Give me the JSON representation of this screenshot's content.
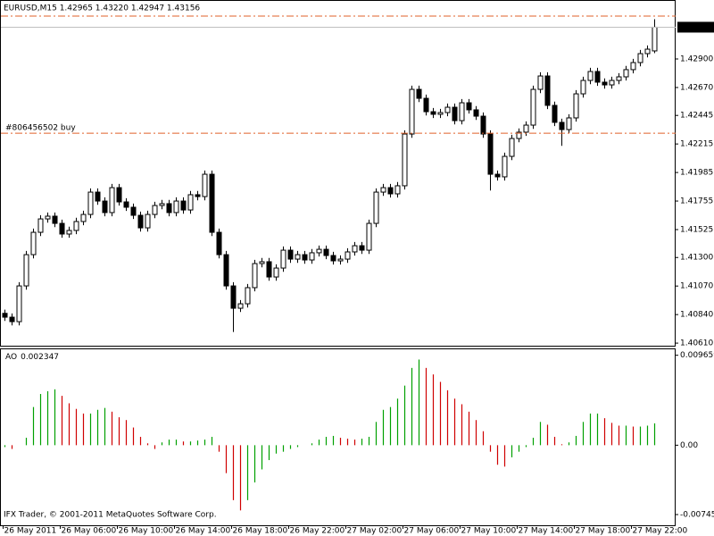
{
  "chart_data": [
    {
      "type": "candlestick",
      "title": "EURUSD,M15  1.42965 1.43220 1.42947 1.43156",
      "ylim": [
        1.40589,
        1.43368
      ],
      "yticks": [
        {
          "value": 1.429,
          "label": "1.42900"
        },
        {
          "value": 1.4267,
          "label": "1.42670"
        },
        1.42445,
        1.42215,
        1.41985,
        1.41755,
        1.41525,
        {
          "value": 1.413,
          "label": "1.41300"
        },
        {
          "value": 1.4107,
          "label": "1.41070"
        },
        {
          "value": 1.4084,
          "label": "1.40840"
        },
        {
          "value": 1.4061,
          "label": "1.40610"
        }
      ],
      "xlim": [
        -0.5,
        94
      ],
      "xticks": [
        {
          "value": 0,
          "label": "26 May 2011"
        },
        {
          "value": 8,
          "label": "26 May 06:00"
        },
        {
          "value": 16,
          "label": "26 May 10:00"
        },
        {
          "value": 24,
          "label": "26 May 14:00"
        },
        {
          "value": 32,
          "label": "26 May 18:00"
        },
        {
          "value": 40,
          "label": "26 May 22:00"
        },
        {
          "value": 48,
          "label": "27 May 02:00"
        },
        {
          "value": 56,
          "label": "27 May 06:00"
        },
        {
          "value": 64,
          "label": "27 May 10:00"
        },
        {
          "value": 72,
          "label": "27 May 14:00"
        },
        {
          "value": 80,
          "label": "27 May 18:00"
        },
        {
          "value": 88,
          "label": "27 May 22:00"
        }
      ],
      "grid": false,
      "bull_color": "#ffffff",
      "bear_color": "#000000",
      "wick_color": "#000000",
      "levels": [
        {
          "value": 1.43246
        },
        {
          "value": 1.42302,
          "label": "#806456502 buy"
        }
      ],
      "level_color": "#e0602a",
      "bid": {
        "value": 1.43156,
        "label": "1.43156"
      },
      "bid_color": "#c0c0c0",
      "ohlc": [
        [
          1.4085,
          1.4088,
          1.40789,
          1.40819
        ],
        [
          1.40819,
          1.40849,
          1.40753,
          1.40783
        ],
        [
          1.40783,
          1.41101,
          1.40753,
          1.41071
        ],
        [
          1.41071,
          1.41353,
          1.41041,
          1.41323
        ],
        [
          1.41323,
          1.41533,
          1.41293,
          1.41503
        ],
        [
          1.41503,
          1.41641,
          1.41473,
          1.41611
        ],
        [
          1.41611,
          1.41663,
          1.41581,
          1.41633
        ],
        [
          1.41633,
          1.41663,
          1.41545,
          1.41575
        ],
        [
          1.41575,
          1.41605,
          1.41459,
          1.41489
        ],
        [
          1.41489,
          1.41548,
          1.41459,
          1.41518
        ],
        [
          1.41518,
          1.4162,
          1.41488,
          1.4159
        ],
        [
          1.4159,
          1.41677,
          1.4156,
          1.41647
        ],
        [
          1.41647,
          1.41857,
          1.41617,
          1.41827
        ],
        [
          1.41827,
          1.41857,
          1.41725,
          1.41755
        ],
        [
          1.41755,
          1.41785,
          1.41632,
          1.41662
        ],
        [
          1.41662,
          1.41893,
          1.41632,
          1.41863
        ],
        [
          1.41863,
          1.41893,
          1.41718,
          1.41748
        ],
        [
          1.41748,
          1.41778,
          1.41675,
          1.41705
        ],
        [
          1.41705,
          1.41735,
          1.4161,
          1.4164
        ],
        [
          1.4164,
          1.4167,
          1.41509,
          1.41539
        ],
        [
          1.41539,
          1.41677,
          1.41509,
          1.41647
        ],
        [
          1.41647,
          1.41749,
          1.41617,
          1.41719
        ],
        [
          1.41719,
          1.41764,
          1.41689,
          1.41734
        ],
        [
          1.41734,
          1.41764,
          1.41632,
          1.41662
        ],
        [
          1.41662,
          1.41785,
          1.41632,
          1.41755
        ],
        [
          1.41755,
          1.41785,
          1.41653,
          1.41683
        ],
        [
          1.41683,
          1.41836,
          1.41653,
          1.41806
        ],
        [
          1.41806,
          1.41836,
          1.41761,
          1.41791
        ],
        [
          1.41791,
          1.42001,
          1.41761,
          1.41971
        ],
        [
          1.41971,
          1.42001,
          1.41473,
          1.41503
        ],
        [
          1.41503,
          1.41533,
          1.41293,
          1.41323
        ],
        [
          1.41323,
          1.41353,
          1.41041,
          1.41071
        ],
        [
          1.41071,
          1.41101,
          1.407,
          1.40891
        ],
        [
          1.40891,
          1.40957,
          1.40861,
          1.40927
        ],
        [
          1.40927,
          1.41087,
          1.40897,
          1.41057
        ],
        [
          1.41057,
          1.41281,
          1.41027,
          1.41251
        ],
        [
          1.41251,
          1.41296,
          1.41221,
          1.41266
        ],
        [
          1.41266,
          1.41296,
          1.41113,
          1.41143
        ],
        [
          1.41143,
          1.41245,
          1.41113,
          1.41215
        ],
        [
          1.41215,
          1.41389,
          1.41185,
          1.41359
        ],
        [
          1.41359,
          1.41389,
          1.41257,
          1.41287
        ],
        [
          1.41287,
          1.41353,
          1.41257,
          1.41323
        ],
        [
          1.41323,
          1.41353,
          1.4125,
          1.4128
        ],
        [
          1.4128,
          1.41368,
          1.4125,
          1.41338
        ],
        [
          1.41338,
          1.41396,
          1.41308,
          1.41366
        ],
        [
          1.41366,
          1.41396,
          1.41286,
          1.41316
        ],
        [
          1.41316,
          1.41346,
          1.41243,
          1.41273
        ],
        [
          1.41273,
          1.41317,
          1.41243,
          1.41287
        ],
        [
          1.41287,
          1.41375,
          1.41257,
          1.41345
        ],
        [
          1.41345,
          1.41425,
          1.41315,
          1.41395
        ],
        [
          1.41395,
          1.41425,
          1.41329,
          1.41359
        ],
        [
          1.41359,
          1.41605,
          1.41329,
          1.41575
        ],
        [
          1.41575,
          1.41857,
          1.41545,
          1.41827
        ],
        [
          1.41827,
          1.41893,
          1.41797,
          1.41863
        ],
        [
          1.41863,
          1.41893,
          1.41783,
          1.41813
        ],
        [
          1.41813,
          1.41908,
          1.41783,
          1.41878
        ],
        [
          1.41878,
          1.42325,
          1.41848,
          1.42295
        ],
        [
          1.42295,
          1.42685,
          1.42265,
          1.42655
        ],
        [
          1.42655,
          1.42685,
          1.42553,
          1.42583
        ],
        [
          1.42583,
          1.42613,
          1.42445,
          1.42475
        ],
        [
          1.42475,
          1.42505,
          1.42424,
          1.42454
        ],
        [
          1.42454,
          1.42498,
          1.42424,
          1.42468
        ],
        [
          1.42468,
          1.42541,
          1.42438,
          1.42511
        ],
        [
          1.42511,
          1.42541,
          1.42373,
          1.42403
        ],
        [
          1.42403,
          1.42577,
          1.42373,
          1.42547
        ],
        [
          1.42547,
          1.42577,
          1.4246,
          1.4249
        ],
        [
          1.4249,
          1.4252,
          1.42409,
          1.42439
        ],
        [
          1.42439,
          1.42469,
          1.42265,
          1.42295
        ],
        [
          1.42295,
          1.42325,
          1.4184,
          1.41971
        ],
        [
          1.41971,
          1.42001,
          1.4192,
          1.4195
        ],
        [
          1.4195,
          1.42145,
          1.4192,
          1.42115
        ],
        [
          1.42115,
          1.42289,
          1.42085,
          1.42259
        ],
        [
          1.42259,
          1.4234,
          1.42229,
          1.4231
        ],
        [
          1.4231,
          1.42397,
          1.4228,
          1.42367
        ],
        [
          1.42367,
          1.42685,
          1.42337,
          1.42655
        ],
        [
          1.42655,
          1.42793,
          1.42625,
          1.42763
        ],
        [
          1.42763,
          1.42793,
          1.42496,
          1.42526
        ],
        [
          1.42526,
          1.42556,
          1.42359,
          1.42389
        ],
        [
          1.42389,
          1.42419,
          1.422,
          1.42331
        ],
        [
          1.42331,
          1.42455,
          1.42301,
          1.42425
        ],
        [
          1.42425,
          1.42649,
          1.42395,
          1.42619
        ],
        [
          1.42619,
          1.42757,
          1.42589,
          1.42727
        ],
        [
          1.42727,
          1.42829,
          1.42697,
          1.42799
        ],
        [
          1.42799,
          1.42829,
          1.42683,
          1.42713
        ],
        [
          1.42713,
          1.42743,
          1.42661,
          1.42691
        ],
        [
          1.42691,
          1.42757,
          1.42661,
          1.42727
        ],
        [
          1.42727,
          1.42786,
          1.42697,
          1.42756
        ],
        [
          1.42756,
          1.42844,
          1.42726,
          1.42814
        ],
        [
          1.42814,
          1.42901,
          1.42784,
          1.42871
        ],
        [
          1.42871,
          1.42973,
          1.42841,
          1.42943
        ],
        [
          1.42943,
          1.43009,
          1.42913,
          1.42979
        ],
        [
          1.42965,
          1.4322,
          1.42947,
          1.43156
        ]
      ]
    },
    {
      "type": "histogram",
      "title": "AO",
      "ylim": [
        -0.0086,
        0.0103
      ],
      "yticks": [
        0.009659,
        {
          "value": 0,
          "label": "0.00"
        },
        -0.00745
      ],
      "up_color": "#00a000",
      "down_color": "#d00000",
      "values": [
        -0.0002,
        -0.0004,
        0,
        0.0008,
        0.0041,
        0.0055,
        0.0058,
        0.006,
        0.0053,
        0.0045,
        0.0039,
        0.0034,
        0.0034,
        0.0038,
        0.004,
        0.0036,
        0.003,
        0.0027,
        0.0019,
        0.0009,
        0.0002,
        -0.0004,
        0.0003,
        0.0006,
        0.0006,
        0.0004,
        0.0004,
        0.0005,
        0.0006,
        0.0009,
        -0.0007,
        -0.003,
        -0.0059,
        -0.007,
        -0.0059,
        -0.004,
        -0.0026,
        -0.0016,
        -0.0009,
        -0.0007,
        -0.0004,
        -0.0002,
        0,
        0.0002,
        0.0006,
        0.0009,
        0.001,
        0.0008,
        0.0007,
        0.0006,
        0.0007,
        0.0009,
        0.0025,
        0.0038,
        0.0041,
        0.005,
        0.0064,
        0.0083,
        0.0092,
        0.0083,
        0.0076,
        0.0068,
        0.0059,
        0.005,
        0.0044,
        0.0036,
        0.0027,
        0.0015,
        -0.0007,
        -0.0021,
        -0.0023,
        -0.0013,
        -0.0007,
        -0.0002,
        0.0008,
        0.0025,
        0.0022,
        0.0009,
        0.0001,
        0.0003,
        0.001,
        0.0025,
        0.0034,
        0.0034,
        0.0029,
        0.0024,
        0.0021,
        0.0021,
        0.002,
        0.002,
        0.0021,
        0.002347
      ]
    }
  ],
  "copyright": "IFX Trader, © 2001-2011 MetaQuotes Software Corp."
}
